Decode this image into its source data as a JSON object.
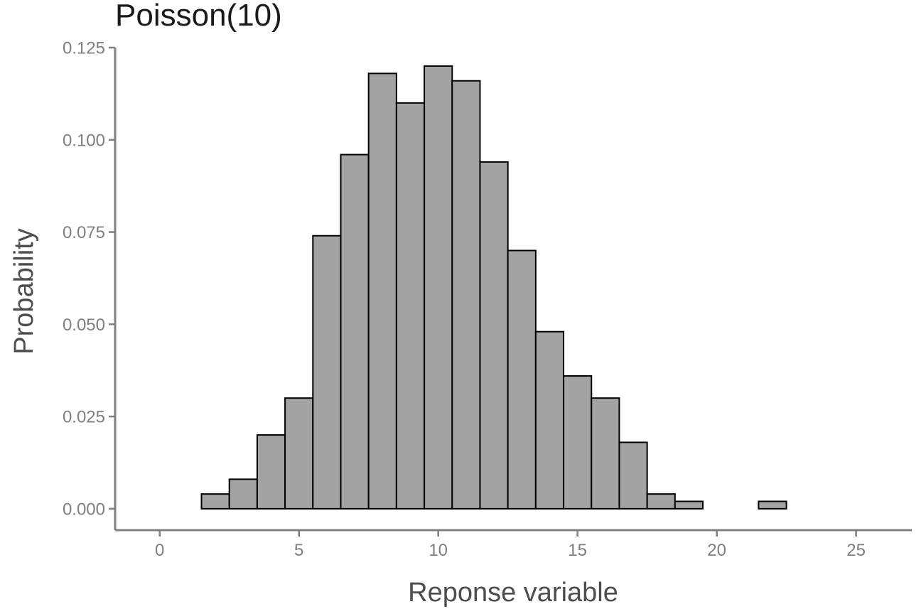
{
  "chart_data": {
    "type": "bar",
    "title": "Poisson(10)",
    "xlabel": "Reponse variable",
    "ylabel": "Probability",
    "x": [
      0,
      1,
      2,
      3,
      4,
      5,
      6,
      7,
      8,
      9,
      10,
      11,
      12,
      13,
      14,
      15,
      16,
      17,
      18,
      19,
      20,
      21,
      22,
      23,
      24,
      25
    ],
    "values": [
      0,
      0,
      0.004,
      0.008,
      0.02,
      0.03,
      0.074,
      0.096,
      0.118,
      0.11,
      0.12,
      0.116,
      0.094,
      0.07,
      0.048,
      0.036,
      0.03,
      0.018,
      0.004,
      0.002,
      0,
      0,
      0.002,
      0,
      0,
      0
    ],
    "xlim": [
      -1.6,
      27
    ],
    "ylim": [
      -0.0058,
      0.125
    ],
    "xticks": [
      0,
      5,
      10,
      15,
      20,
      25
    ],
    "yticks": [
      0,
      0.025,
      0.05,
      0.075,
      0.1,
      0.125
    ],
    "xtick_labels": [
      "0",
      "5",
      "10",
      "15",
      "20",
      "25"
    ],
    "ytick_labels": [
      "0.000",
      "0.025",
      "0.050",
      "0.075",
      "0.100",
      "0.125"
    ],
    "bar_color": "#a3a3a3",
    "bar_edge_color": "#000000",
    "grid": false,
    "legend": "none"
  }
}
